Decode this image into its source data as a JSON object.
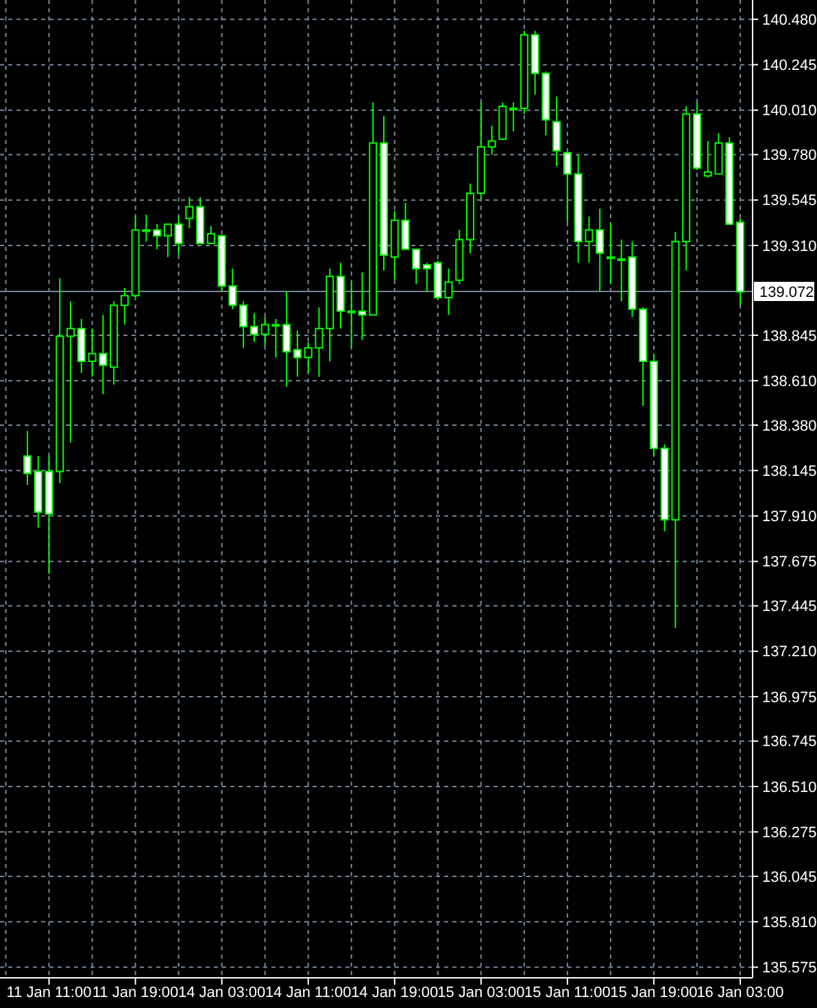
{
  "chart_data": {
    "type": "candlestick",
    "categories": [
      null,
      null,
      "11 Jan 11:00",
      null,
      null,
      null,
      null,
      null,
      null,
      null,
      "11 Jan 19:00",
      null,
      null,
      null,
      null,
      null,
      null,
      null,
      "14 Jan 03:00",
      null,
      null,
      null,
      null,
      null,
      null,
      null,
      "14 Jan 11:00",
      null,
      null,
      null,
      null,
      null,
      null,
      null,
      "14 Jan 19:00",
      null,
      null,
      null,
      null,
      null,
      null,
      null,
      "15 Jan 03:00",
      null,
      null,
      null,
      null,
      null,
      null,
      null,
      "15 Jan 11:00",
      null,
      null,
      null,
      null,
      null,
      null,
      null,
      "15 Jan 19:00",
      null,
      null,
      null,
      null,
      null,
      null,
      null,
      "16 Jan 03:00"
    ],
    "color": "#00ff00",
    "ohlc": [
      [
        138.22,
        138.35,
        138.07,
        138.13
      ],
      [
        138.14,
        138.22,
        137.85,
        137.93
      ],
      [
        138.14,
        138.22,
        137.61,
        137.92
      ],
      [
        138.14,
        139.14,
        138.08,
        138.84
      ],
      [
        138.84,
        139.02,
        138.29,
        138.88
      ],
      [
        138.88,
        138.93,
        138.65,
        138.71
      ],
      [
        138.71,
        138.88,
        138.63,
        138.75
      ],
      [
        138.75,
        138.95,
        138.54,
        138.69
      ],
      [
        138.68,
        139.02,
        138.59,
        139.0
      ],
      [
        139.0,
        139.09,
        138.9,
        139.05
      ],
      [
        139.05,
        139.46,
        139.04,
        139.39
      ],
      [
        139.39,
        139.47,
        139.33,
        139.39
      ],
      [
        139.39,
        139.42,
        139.29,
        139.36
      ],
      [
        139.36,
        139.42,
        139.25,
        139.42
      ],
      [
        139.42,
        139.46,
        139.26,
        139.32
      ],
      [
        139.45,
        139.56,
        139.4,
        139.51
      ],
      [
        139.51,
        139.56,
        139.32,
        139.32
      ],
      [
        139.32,
        139.41,
        139.32,
        139.37
      ],
      [
        139.36,
        139.36,
        139.07,
        139.1
      ],
      [
        139.1,
        139.19,
        138.98,
        139.0
      ],
      [
        139.0,
        139.02,
        138.78,
        138.89
      ],
      [
        138.89,
        138.96,
        138.81,
        138.85
      ],
      [
        138.85,
        138.94,
        138.79,
        138.9
      ],
      [
        138.9,
        138.93,
        138.73,
        138.9
      ],
      [
        138.9,
        139.07,
        138.58,
        138.76
      ],
      [
        138.77,
        138.87,
        138.63,
        138.73
      ],
      [
        138.73,
        138.81,
        138.65,
        138.78
      ],
      [
        138.78,
        138.99,
        138.63,
        138.88
      ],
      [
        138.88,
        139.19,
        138.71,
        139.15
      ],
      [
        139.15,
        139.22,
        138.88,
        138.97
      ],
      [
        138.97,
        139.12,
        138.78,
        138.97
      ],
      [
        138.97,
        139.17,
        138.82,
        138.95
      ],
      [
        138.95,
        140.05,
        138.95,
        139.84
      ],
      [
        139.84,
        139.98,
        139.18,
        139.26
      ],
      [
        139.25,
        139.49,
        139.13,
        139.44
      ],
      [
        139.44,
        139.53,
        139.29,
        139.29
      ],
      [
        139.29,
        139.29,
        139.11,
        139.19
      ],
      [
        139.21,
        139.22,
        139.07,
        139.19
      ],
      [
        139.22,
        139.23,
        139.03,
        139.04
      ],
      [
        139.04,
        139.19,
        138.95,
        139.12
      ],
      [
        139.13,
        139.39,
        139.11,
        139.34
      ],
      [
        139.34,
        139.63,
        139.27,
        139.58
      ],
      [
        139.58,
        140.05,
        139.55,
        139.82
      ],
      [
        139.82,
        139.93,
        139.78,
        139.85
      ],
      [
        139.86,
        140.05,
        139.86,
        140.03
      ],
      [
        140.02,
        140.05,
        139.9,
        140.02
      ],
      [
        140.02,
        140.42,
        139.99,
        140.4
      ],
      [
        140.4,
        140.42,
        140.09,
        140.2
      ],
      [
        140.2,
        140.21,
        139.88,
        139.96
      ],
      [
        139.95,
        140.08,
        139.72,
        139.8
      ],
      [
        139.79,
        139.79,
        139.43,
        139.68
      ],
      [
        139.68,
        139.78,
        139.22,
        139.33
      ],
      [
        139.33,
        139.46,
        139.22,
        139.39
      ],
      [
        139.39,
        139.5,
        139.07,
        139.27
      ],
      [
        139.25,
        139.43,
        139.11,
        139.25
      ],
      [
        139.24,
        139.34,
        139.02,
        139.24
      ],
      [
        139.25,
        139.33,
        138.94,
        138.98
      ],
      [
        138.98,
        138.99,
        138.48,
        138.71
      ],
      [
        138.71,
        138.75,
        138.22,
        138.26
      ],
      [
        138.26,
        138.28,
        137.83,
        137.89
      ],
      [
        137.89,
        139.38,
        137.33,
        139.33
      ],
      [
        139.33,
        140.03,
        139.18,
        139.99
      ],
      [
        139.99,
        140.05,
        139.7,
        139.71
      ],
      [
        139.67,
        139.85,
        139.66,
        139.69
      ],
      [
        139.68,
        139.89,
        139.68,
        139.84
      ],
      [
        139.84,
        139.87,
        139.42,
        139.42
      ],
      [
        139.43,
        139.45,
        139.0,
        139.07
      ]
    ],
    "ylim": [
      135.52,
      140.58
    ],
    "yticks": [
      {
        "value": 140.48,
        "label": "140.480"
      },
      {
        "value": 140.245,
        "label": "140.245"
      },
      {
        "value": 140.01,
        "label": "140.010"
      },
      {
        "value": 139.78,
        "label": "139.780"
      },
      {
        "value": 139.545,
        "label": "139.545"
      },
      {
        "value": 139.31,
        "label": "139.310"
      },
      {
        "value": 138.845,
        "label": "138.845"
      },
      {
        "value": 138.61,
        "label": "138.610"
      },
      {
        "value": 138.38,
        "label": "138.380"
      },
      {
        "value": 138.145,
        "label": "138.145"
      },
      {
        "value": 137.91,
        "label": "137.910"
      },
      {
        "value": 137.675,
        "label": "137.675"
      },
      {
        "value": 137.445,
        "label": "137.445"
      },
      {
        "value": 137.21,
        "label": "137.210"
      },
      {
        "value": 136.975,
        "label": "136.975"
      },
      {
        "value": 136.745,
        "label": "136.745"
      },
      {
        "value": 136.51,
        "label": "136.510"
      },
      {
        "value": 136.275,
        "label": "136.275"
      },
      {
        "value": 136.045,
        "label": "136.045"
      },
      {
        "value": 135.81,
        "label": "135.810"
      },
      {
        "value": 135.575,
        "label": "135.575"
      }
    ],
    "grid": true,
    "ref_lines": [
      {
        "axis": "y",
        "value": 139.072,
        "label": "139.072",
        "color": "#778899"
      }
    ]
  }
}
